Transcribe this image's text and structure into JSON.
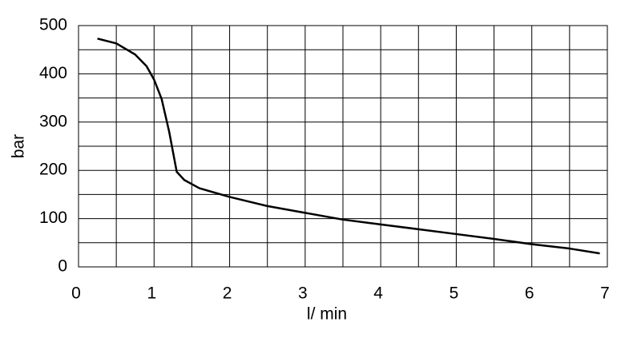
{
  "chart_data": {
    "type": "line",
    "x_label": "l/ min",
    "y_label": "bar",
    "x": [
      0.25,
      0.5,
      0.75,
      0.9,
      1.0,
      1.1,
      1.2,
      1.3,
      1.4,
      1.6,
      2.0,
      2.5,
      3.0,
      3.5,
      4.0,
      4.5,
      5.0,
      5.5,
      6.0,
      6.5,
      6.9
    ],
    "series": [
      {
        "color": "#000000",
        "values": [
          473,
          463,
          440,
          416,
          388,
          348,
          280,
          197,
          180,
          163,
          145,
          126,
          112,
          98,
          88,
          78,
          68,
          58,
          47,
          38,
          28
        ]
      }
    ],
    "xlim": [
      0,
      7
    ],
    "ylim": [
      0,
      500
    ],
    "xticks": [
      0,
      1,
      2,
      3,
      4,
      5,
      6,
      7
    ],
    "yticks": [
      0,
      100,
      200,
      300,
      400,
      500
    ],
    "minor_xticks": [
      0.5,
      1.5,
      2.5,
      3.5,
      4.5,
      5.5,
      6.5
    ],
    "minor_yticks": [
      50,
      150,
      250,
      350,
      450
    ],
    "grid": true
  }
}
